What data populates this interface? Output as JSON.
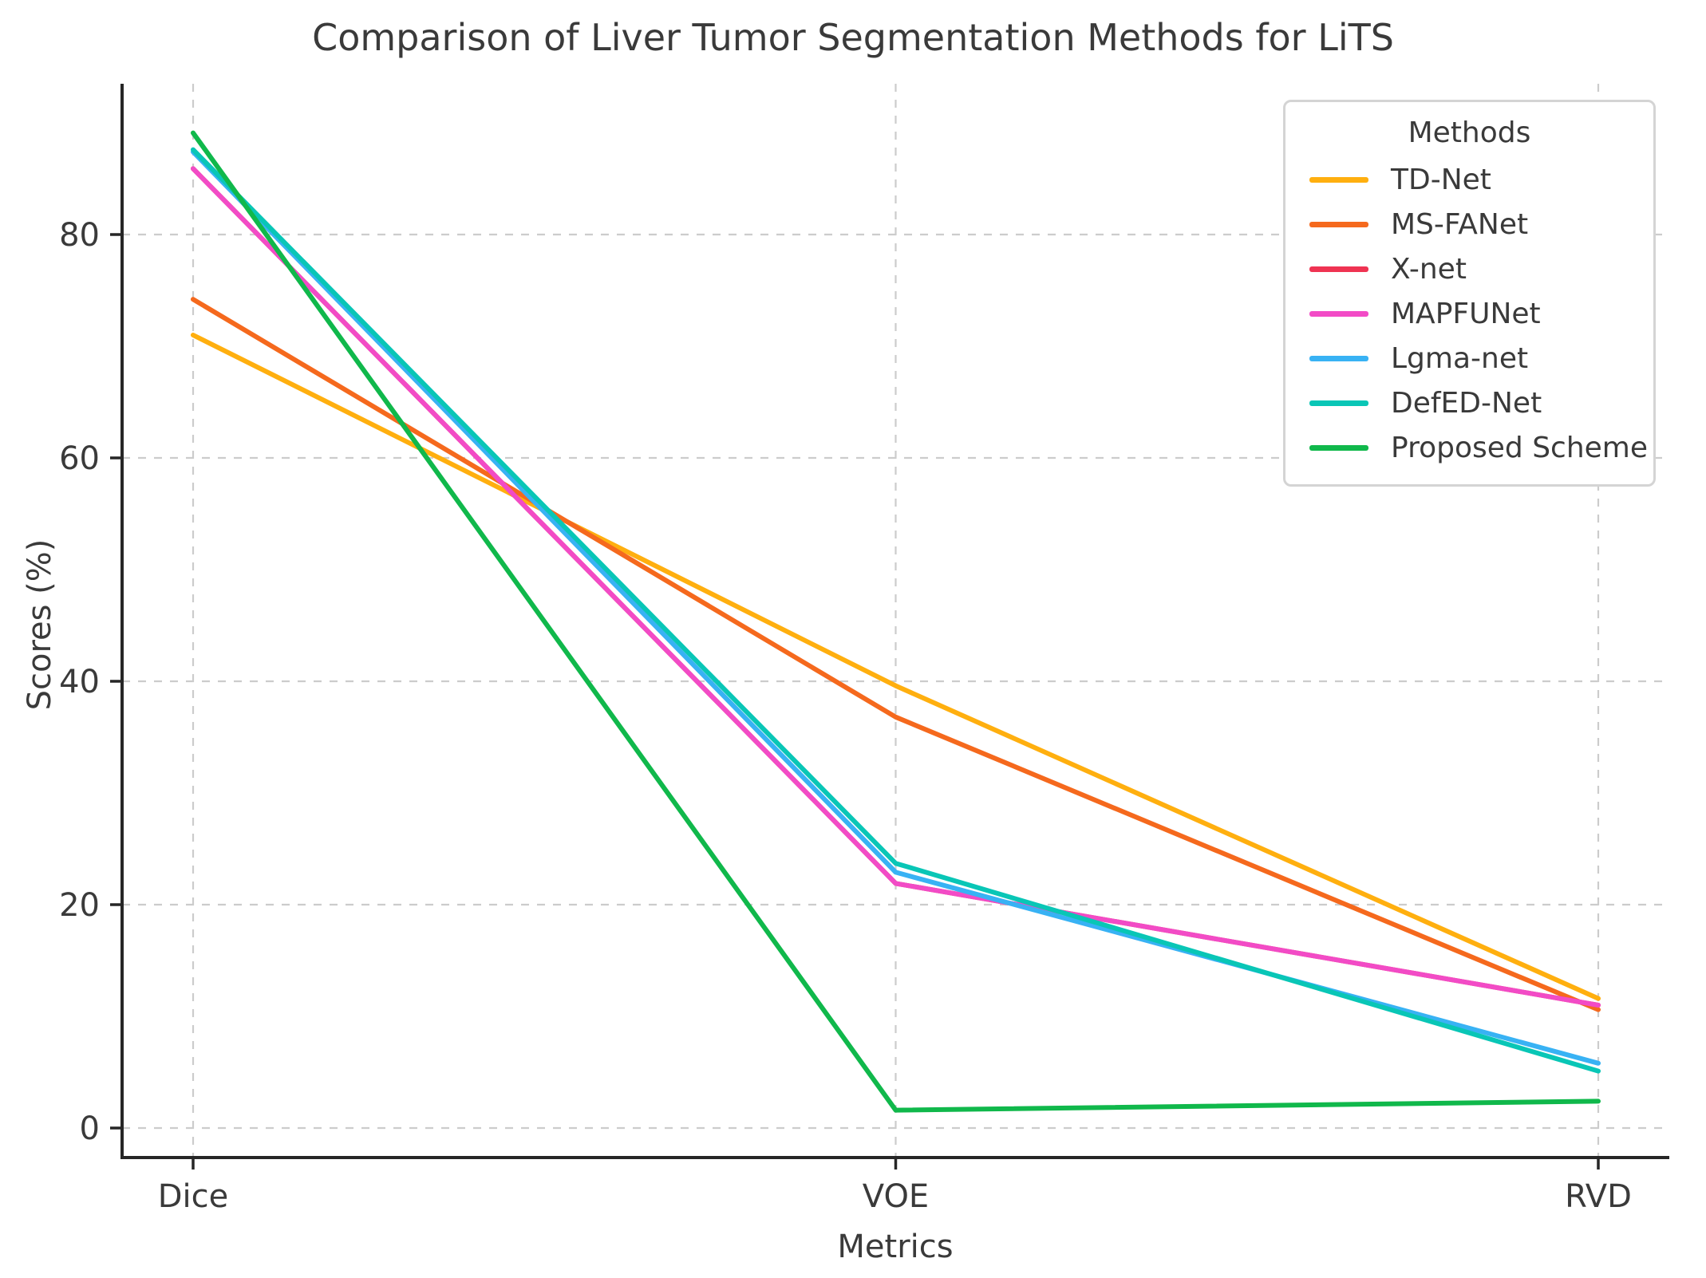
{
  "title": "Comparison of Liver Tumor Segmentation Methods for LiTS",
  "chart_data": {
    "type": "line",
    "title": "Comparison of Liver Tumor Segmentation Methods for LiTS",
    "xlabel": "Metrics",
    "ylabel": "Scores (%)",
    "categories": [
      "Dice",
      "VOE",
      "RVD"
    ],
    "yticks": [
      0,
      20,
      40,
      60,
      80
    ],
    "ylim": [
      -2.6,
      93.5
    ],
    "grid": true,
    "grid_style": "dashed",
    "legend_title": "Methods",
    "legend_position": "upper right",
    "series": [
      {
        "name": "TD-Net",
        "color": "#FFAF0F",
        "values": [
          71.0,
          39.6,
          11.6
        ]
      },
      {
        "name": "MS-FANet",
        "color": "#F5691D",
        "values": [
          74.2,
          36.8,
          10.6
        ]
      },
      {
        "name": "X-net",
        "color": "#EF3352",
        "values": [
          85.9,
          21.9,
          11.0
        ]
      },
      {
        "name": "MAPFUNet",
        "color": "#F24BC6",
        "values": [
          85.9,
          21.9,
          11.0
        ]
      },
      {
        "name": "Lgma-net",
        "color": "#38B2F4",
        "values": [
          87.4,
          22.9,
          5.8
        ]
      },
      {
        "name": "DefED-Net",
        "color": "#09C6B6",
        "values": [
          87.6,
          23.7,
          5.1
        ]
      },
      {
        "name": "Proposed Scheme",
        "color": "#10B84B",
        "values": [
          89.1,
          1.6,
          2.4
        ]
      }
    ],
    "axis_color": "#262626",
    "gridline_color": "#cccccc",
    "text_color": "#3a3a3a"
  }
}
